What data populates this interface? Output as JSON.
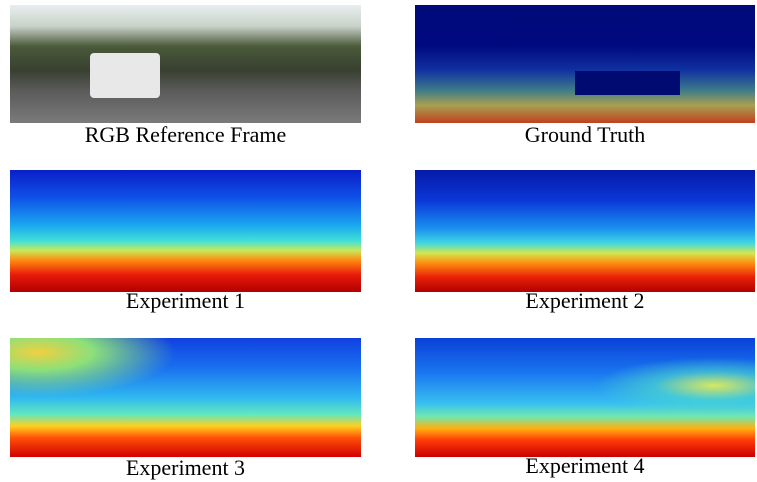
{
  "panels": [
    {
      "caption": "RGB Reference Frame"
    },
    {
      "caption": "Ground Truth"
    },
    {
      "caption": "Experiment 1"
    },
    {
      "caption": "Experiment 2"
    },
    {
      "caption": "Experiment 3"
    },
    {
      "caption": "Experiment 4"
    }
  ]
}
